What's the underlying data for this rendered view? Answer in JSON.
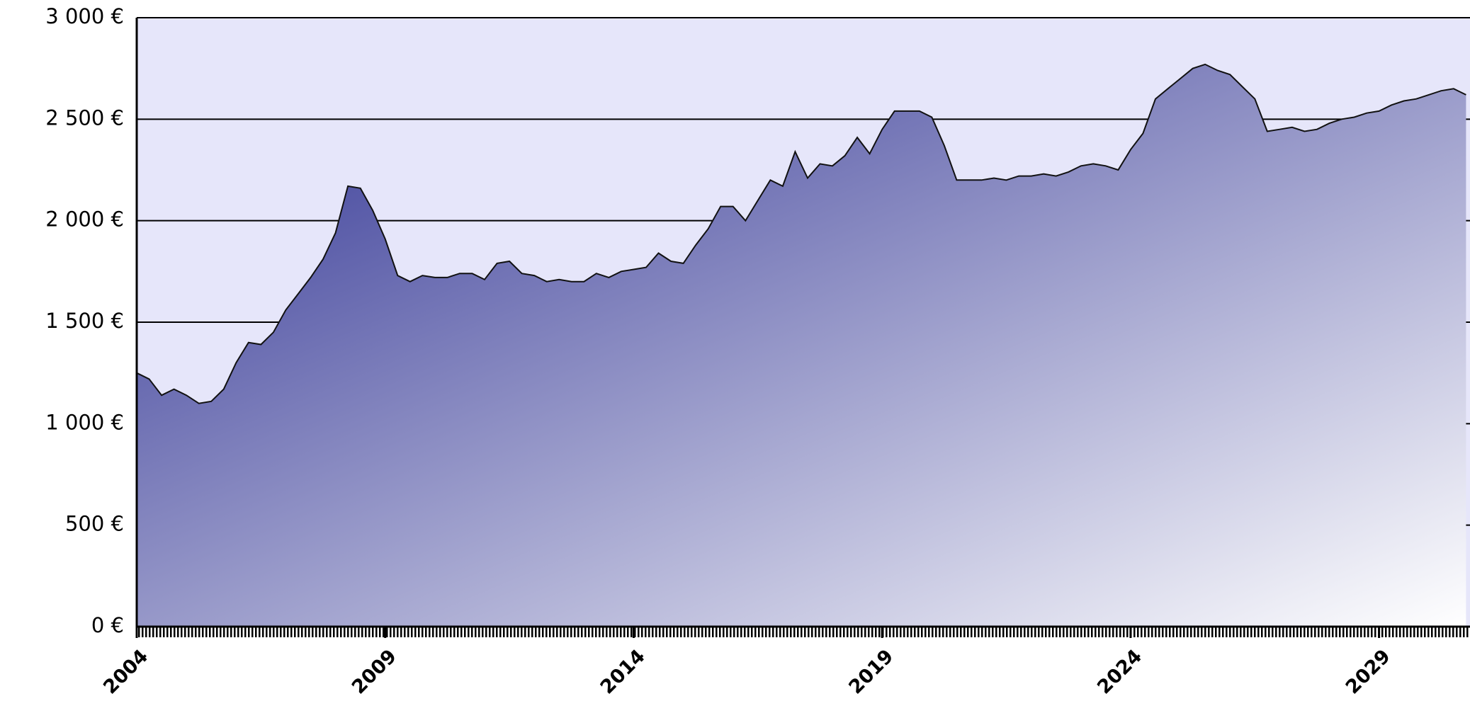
{
  "chart_data": {
    "type": "area",
    "color": "#2e3192",
    "background": "#e6e6fa",
    "grid": true,
    "xlim": [
      2004,
      2030.83
    ],
    "xticks": [
      2004,
      2009,
      2014,
      2019,
      2024,
      2029
    ],
    "ylim": [
      0,
      3000
    ],
    "yticks": [
      {
        "value": 0,
        "label": "0 €"
      },
      {
        "value": 500,
        "label": "500 €"
      },
      {
        "value": 1000,
        "label": "1 000 €"
      },
      {
        "value": 1500,
        "label": "1 500 €"
      },
      {
        "value": 2000,
        "label": "2 000 €"
      },
      {
        "value": 2500,
        "label": "2 500 €"
      },
      {
        "value": 3000,
        "label": "3 000 €"
      }
    ],
    "x": [
      2004,
      2004.25,
      2004.5,
      2004.75,
      2005,
      2005.25,
      2005.5,
      2005.75,
      2006,
      2006.25,
      2006.5,
      2006.75,
      2007,
      2007.25,
      2007.5,
      2007.75,
      2008,
      2008.25,
      2008.5,
      2008.75,
      2009,
      2009.25,
      2009.5,
      2009.75,
      2010,
      2010.25,
      2010.5,
      2010.75,
      2011,
      2011.25,
      2011.5,
      2011.75,
      2012,
      2012.25,
      2012.5,
      2012.75,
      2013,
      2013.25,
      2013.5,
      2013.75,
      2014,
      2014.25,
      2014.5,
      2014.75,
      2015,
      2015.25,
      2015.5,
      2015.75,
      2016,
      2016.25,
      2016.5,
      2016.75,
      2017,
      2017.25,
      2017.5,
      2017.75,
      2018,
      2018.25,
      2018.5,
      2018.75,
      2019,
      2019.25,
      2019.5,
      2019.75,
      2020,
      2020.25,
      2020.5,
      2020.75,
      2021,
      2021.25,
      2021.5,
      2021.75,
      2022,
      2022.25,
      2022.5,
      2022.75,
      2023,
      2023.25,
      2023.5,
      2023.75,
      2024,
      2024.25,
      2024.5,
      2024.75,
      2025,
      2025.25,
      2025.5,
      2025.75,
      2026,
      2026.25,
      2026.5,
      2026.75,
      2027,
      2027.25,
      2027.5,
      2027.75,
      2028,
      2028.25,
      2028.5,
      2028.75,
      2029,
      2029.25,
      2029.5,
      2029.75,
      2030,
      2030.25,
      2030.5,
      2030.75
    ],
    "values": [
      1250,
      1220,
      1140,
      1170,
      1140,
      1100,
      1110,
      1170,
      1300,
      1400,
      1390,
      1450,
      1560,
      1640,
      1720,
      1810,
      1940,
      2170,
      2160,
      2050,
      1910,
      1730,
      1700,
      1730,
      1720,
      1720,
      1740,
      1740,
      1710,
      1790,
      1800,
      1740,
      1730,
      1700,
      1710,
      1700,
      1700,
      1740,
      1720,
      1750,
      1760,
      1770,
      1840,
      1800,
      1790,
      1880,
      1960,
      2070,
      2070,
      2000,
      2100,
      2200,
      2170,
      2340,
      2210,
      2280,
      2270,
      2320,
      2410,
      2330,
      2450,
      2540,
      2540,
      2540,
      2510,
      2370,
      2200,
      2200,
      2200,
      2210,
      2200,
      2220,
      2220,
      2230,
      2220,
      2240,
      2270,
      2280,
      2270,
      2250,
      2350,
      2430,
      2600,
      2650,
      2700,
      2750,
      2770,
      2740,
      2720,
      2660,
      2600,
      2440,
      2450,
      2460,
      2440,
      2450,
      2480,
      2500,
      2510,
      2530,
      2540,
      2570,
      2590,
      2600,
      2620,
      2640,
      2650,
      2620
    ]
  }
}
